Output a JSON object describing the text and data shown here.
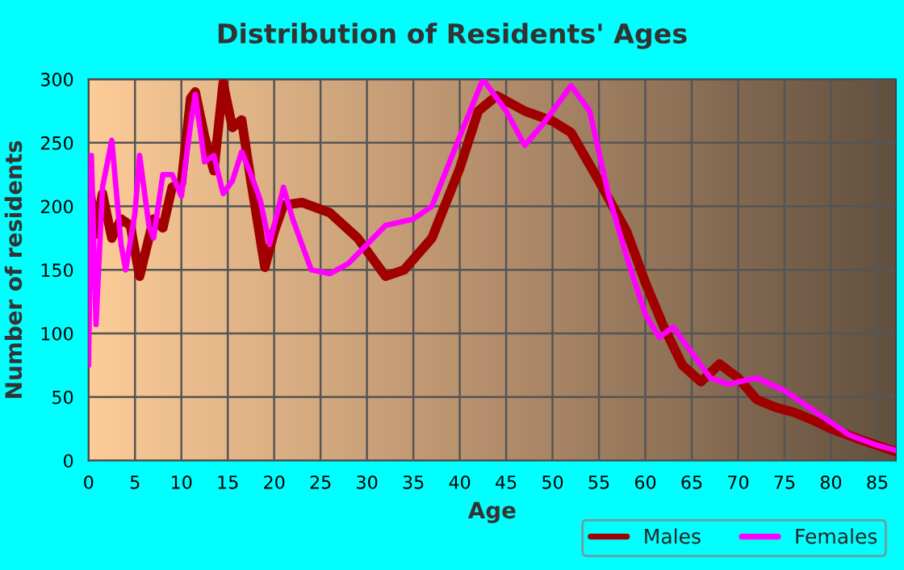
{
  "chart_data": {
    "type": "line",
    "title": "Distribution of Residents' Ages",
    "xlabel": "Age",
    "ylabel": "Number of residents",
    "xlim": [
      0,
      87
    ],
    "xticks": [
      0,
      5,
      10,
      15,
      20,
      25,
      30,
      35,
      40,
      45,
      50,
      55,
      60,
      65,
      70,
      75,
      80,
      85
    ],
    "ylim": [
      0,
      300
    ],
    "yticks": [
      0,
      50,
      100,
      150,
      200,
      250,
      300
    ],
    "grid": true,
    "legend": "bottom right",
    "series": [
      {
        "name": "Males",
        "color": "#a00000",
        "x": [
          0,
          0.2,
          0.7,
          1.5,
          2.5,
          3.5,
          4.5,
          5.5,
          7,
          8,
          9,
          10,
          11,
          11.5,
          12.5,
          13.5,
          14.5,
          15.5,
          16.5,
          17.5,
          19,
          20,
          21,
          23,
          26,
          29,
          32,
          34,
          37,
          40,
          42,
          44,
          47,
          50,
          52,
          55,
          58,
          60,
          62,
          64,
          66,
          68,
          70,
          72,
          74,
          76,
          78,
          80,
          83,
          87
        ],
        "values": [
          180,
          210,
          178,
          210,
          175,
          190,
          185,
          145,
          190,
          183,
          215,
          218,
          285,
          290,
          255,
          228,
          297,
          262,
          268,
          220,
          152,
          180,
          201,
          203,
          195,
          175,
          145,
          150,
          175,
          230,
          275,
          287,
          275,
          267,
          258,
          220,
          180,
          140,
          105,
          75,
          62,
          76,
          65,
          48,
          42,
          38,
          32,
          25,
          17,
          7
        ]
      },
      {
        "name": "Females",
        "color": "#ff00ff",
        "x": [
          0,
          0.3,
          0.8,
          1.5,
          2.5,
          3.5,
          4,
          5,
          5.5,
          6.5,
          7,
          8,
          9,
          10,
          11,
          11.5,
          12.5,
          13.5,
          14.5,
          15.5,
          16.5,
          17.5,
          18.5,
          19.5,
          21,
          22,
          24,
          26,
          28,
          30,
          32,
          35,
          37,
          40,
          42.5,
          45,
          47,
          49,
          52,
          54,
          56,
          58,
          60,
          61.5,
          63,
          65,
          67,
          69,
          72,
          75,
          77,
          79,
          82,
          85,
          87
        ],
        "values": [
          75,
          240,
          107,
          215,
          252,
          170,
          150,
          195,
          240,
          185,
          175,
          225,
          225,
          208,
          265,
          288,
          235,
          240,
          210,
          220,
          243,
          225,
          205,
          170,
          215,
          190,
          150,
          147,
          155,
          170,
          185,
          190,
          200,
          255,
          300,
          275,
          248,
          265,
          295,
          275,
          210,
          160,
          115,
          97,
          105,
          85,
          65,
          60,
          65,
          55,
          45,
          35,
          20,
          12,
          8
        ]
      }
    ]
  }
}
